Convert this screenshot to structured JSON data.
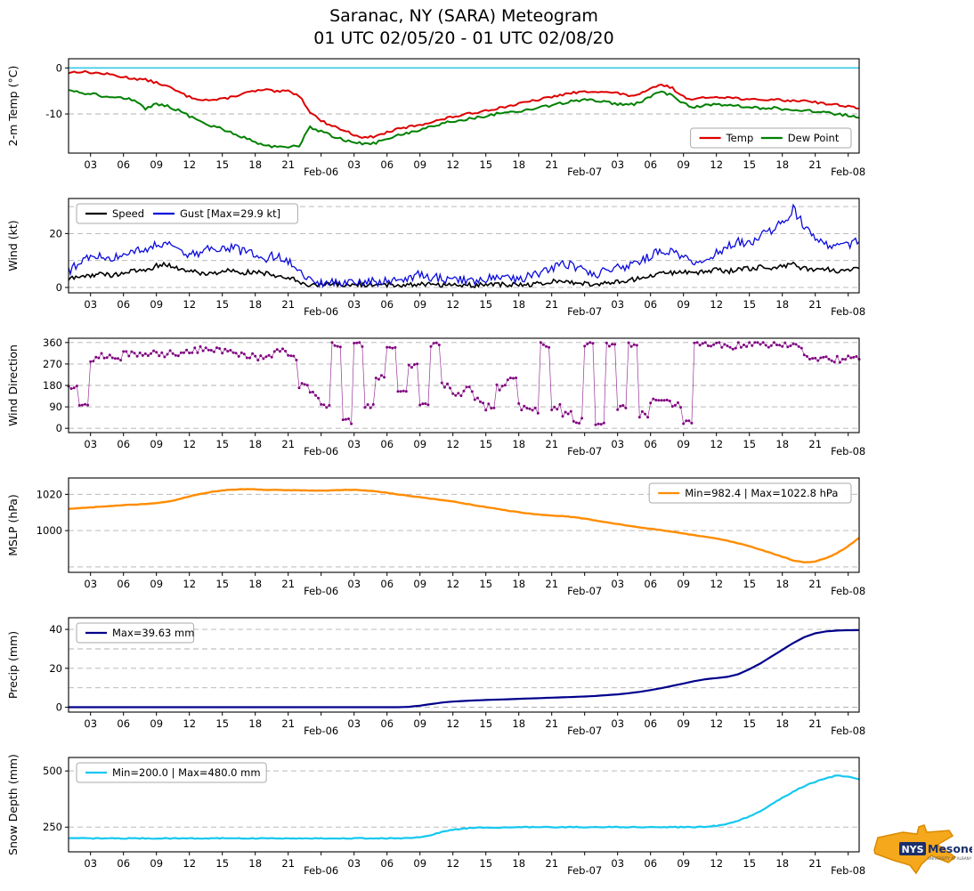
{
  "title": "Saranac, NY (SARA) Meteogram",
  "subtitle": "01 UTC 02/05/20 - 01 UTC 02/08/20",
  "logo": {
    "org": "NYS",
    "name": "Mesonet",
    "tagline": "UNIVERSITY AT ALBANY"
  },
  "chart_data": {
    "type": "line",
    "x_axis": {
      "min": 0,
      "max": 72,
      "unit": "hours since 01 UTC 02/05/20",
      "ticks": [
        {
          "x": 2,
          "label": "03"
        },
        {
          "x": 5,
          "label": "06"
        },
        {
          "x": 8,
          "label": "09"
        },
        {
          "x": 11,
          "label": "12"
        },
        {
          "x": 14,
          "label": "15"
        },
        {
          "x": 17,
          "label": "18"
        },
        {
          "x": 20,
          "label": "21"
        },
        {
          "x": 23,
          "label": "Feb-06",
          "day": true
        },
        {
          "x": 26,
          "label": "03"
        },
        {
          "x": 29,
          "label": "06"
        },
        {
          "x": 32,
          "label": "09"
        },
        {
          "x": 35,
          "label": "12"
        },
        {
          "x": 38,
          "label": "15"
        },
        {
          "x": 41,
          "label": "18"
        },
        {
          "x": 44,
          "label": "21"
        },
        {
          "x": 47,
          "label": "Feb-07",
          "day": true
        },
        {
          "x": 50,
          "label": "03"
        },
        {
          "x": 53,
          "label": "06"
        },
        {
          "x": 56,
          "label": "09"
        },
        {
          "x": 59,
          "label": "12"
        },
        {
          "x": 62,
          "label": "15"
        },
        {
          "x": 65,
          "label": "18"
        },
        {
          "x": 68,
          "label": "21"
        },
        {
          "x": 71,
          "label": "Feb-08",
          "day": true
        }
      ]
    },
    "panels": [
      {
        "name": "temperature",
        "ylabel": "2-m Temp (°C)",
        "ylim": [
          -18.5,
          2
        ],
        "yticks": [
          {
            "v": 0,
            "label": "0"
          },
          {
            "v": -10,
            "label": "-10"
          }
        ],
        "grid": [
          0,
          -10
        ],
        "hlines": [
          {
            "y": 0,
            "color": "#35c8e8"
          }
        ],
        "legend": {
          "pos": "se",
          "entries": [
            {
              "label": "Temp",
              "color": "#dd0000"
            },
            {
              "label": "Dew Point",
              "color": "#008000"
            }
          ]
        },
        "series": [
          {
            "name": "Temp",
            "color": "#dd0000",
            "width": 2,
            "jitter": 0.25,
            "steps": 4,
            "values": [
              -1.0,
              -0.8,
              -1.0,
              -1.2,
              -1.5,
              -2.0,
              -2.3,
              -2.6,
              -3.2,
              -4.0,
              -5.2,
              -6.3,
              -6.8,
              -7.0,
              -6.8,
              -6.2,
              -5.5,
              -5.0,
              -4.8,
              -5.2,
              -5.0,
              -6.0,
              -9.5,
              -11.5,
              -12.5,
              -13.5,
              -14.5,
              -15.2,
              -14.8,
              -14.0,
              -13.3,
              -12.8,
              -12.3,
              -11.8,
              -11.2,
              -10.6,
              -10.2,
              -9.7,
              -9.2,
              -8.8,
              -8.3,
              -7.8,
              -7.3,
              -6.8,
              -6.3,
              -5.8,
              -5.4,
              -5.2,
              -5.0,
              -5.3,
              -5.5,
              -6.0,
              -5.8,
              -4.6,
              -3.6,
              -4.4,
              -6.3,
              -6.8,
              -6.5,
              -6.2,
              -6.4,
              -6.6,
              -6.9,
              -7.0,
              -6.8,
              -7.0,
              -7.2,
              -7.0,
              -7.4,
              -7.8,
              -8.0,
              -8.3,
              -8.8
            ]
          },
          {
            "name": "Dew Point",
            "color": "#008000",
            "width": 2,
            "jitter": 0.3,
            "steps": 4,
            "values": [
              -5.0,
              -5.3,
              -5.6,
              -6.0,
              -6.3,
              -6.6,
              -7.0,
              -8.8,
              -7.8,
              -8.3,
              -9.2,
              -10.5,
              -11.5,
              -12.5,
              -13.2,
              -14.3,
              -15.2,
              -16.2,
              -16.8,
              -17.2,
              -17.2,
              -17.0,
              -12.8,
              -13.8,
              -14.8,
              -15.6,
              -16.2,
              -16.6,
              -16.2,
              -15.4,
              -14.6,
              -14.0,
              -13.4,
              -12.8,
              -12.2,
              -11.6,
              -11.2,
              -10.8,
              -10.4,
              -10.0,
              -9.8,
              -9.4,
              -9.0,
              -8.6,
              -8.2,
              -7.6,
              -7.2,
              -7.0,
              -7.0,
              -7.4,
              -7.8,
              -8.0,
              -7.6,
              -6.2,
              -5.2,
              -6.0,
              -7.8,
              -8.4,
              -8.2,
              -7.9,
              -8.1,
              -8.3,
              -8.6,
              -8.8,
              -8.7,
              -8.9,
              -9.2,
              -9.1,
              -9.5,
              -9.8,
              -10.0,
              -10.3,
              -10.8
            ]
          }
        ]
      },
      {
        "name": "wind",
        "ylabel": "Wind (kt)",
        "ylim": [
          -2,
          33
        ],
        "yticks": [
          {
            "v": 0,
            "label": "0"
          },
          {
            "v": 20,
            "label": "20"
          }
        ],
        "grid": [
          0,
          10,
          20,
          30
        ],
        "legend": {
          "pos": "nw",
          "entries": [
            {
              "label": "Speed",
              "color": "#000000"
            },
            {
              "label": "Gust [Max=29.9 kt]",
              "color": "#0b0bdd"
            }
          ]
        },
        "series": [
          {
            "name": "Speed",
            "color": "#000000",
            "width": 1.6,
            "jitter": 0.9,
            "steps": 6,
            "clamp": [
              0,
              33
            ],
            "values": [
              3,
              4,
              4.5,
              5,
              4.5,
              5.5,
              6,
              6.5,
              8,
              8.5,
              7,
              6,
              5.5,
              5,
              6,
              6.5,
              5.5,
              6,
              5,
              4.5,
              4,
              2,
              1,
              0.8,
              1,
              0.8,
              1,
              1.2,
              0.8,
              1,
              0.8,
              1,
              1.5,
              1.2,
              1,
              0.8,
              1,
              0.8,
              1,
              1.2,
              1,
              0.8,
              1,
              1.5,
              2,
              2.5,
              2,
              1.5,
              1,
              1.5,
              2,
              2.5,
              3.5,
              4.5,
              5,
              5.5,
              6,
              5.5,
              6,
              6.5,
              6,
              6.5,
              7,
              7.5,
              7,
              8,
              8.5,
              7,
              6.5,
              7,
              6,
              6.5,
              7
            ]
          },
          {
            "name": "Gust",
            "color": "#0b0bdd",
            "width": 1.3,
            "jitter": 1.7,
            "steps": 6,
            "clamp": [
              0,
              32.5
            ],
            "values": [
              6,
              9,
              11,
              12,
              11,
              13,
              14,
              13,
              16,
              17,
              13,
              12,
              13,
              15,
              14,
              15,
              13,
              12,
              11,
              12,
              10,
              6,
              3,
              1.5,
              2,
              1.5,
              2,
              2.5,
              2,
              3,
              2.5,
              3,
              5,
              4,
              3,
              2.5,
              3,
              2.5,
              3,
              4,
              3.5,
              3,
              4,
              5,
              7,
              9,
              8,
              6,
              5,
              6,
              7,
              8,
              9,
              12,
              14,
              13,
              12,
              10,
              11,
              13,
              15,
              17,
              16,
              19,
              21,
              24,
              29,
              23,
              18,
              16,
              15,
              16,
              17
            ]
          }
        ]
      },
      {
        "name": "wind-direction",
        "ylabel": "Wind Direction",
        "ylim": [
          -18,
          378
        ],
        "yticks": [
          {
            "v": 0,
            "label": "0"
          },
          {
            "v": 90,
            "label": "90"
          },
          {
            "v": 180,
            "label": "180"
          },
          {
            "v": 270,
            "label": "270"
          },
          {
            "v": 360,
            "label": "360"
          }
        ],
        "grid": [
          0,
          90,
          180,
          270,
          360
        ],
        "series": [
          {
            "name": "Direction",
            "color": "#800080",
            "width": 0.7,
            "opacity": 0.8,
            "jitter": 14,
            "steps": 4,
            "interp": "hold",
            "clamp": [
              0,
              360
            ],
            "marker": true,
            "values": [
              180,
              95,
              290,
              305,
              300,
              310,
              305,
              315,
              310,
              320,
              315,
              330,
              335,
              330,
              320,
              310,
              305,
              300,
              310,
              330,
              300,
              180,
              140,
              100,
              350,
              30,
              355,
              100,
              210,
              350,
              150,
              260,
              90,
              350,
              180,
              140,
              160,
              120,
              90,
              170,
              200,
              90,
              75,
              350,
              90,
              60,
              30,
              350,
              20,
              355,
              90,
              350,
              60,
              120,
              110,
              100,
              20,
              350,
              355,
              350,
              345,
              350,
              355,
              350,
              350,
              355,
              350,
              300,
              295,
              290,
              290,
              295,
              290
            ]
          }
        ]
      },
      {
        "name": "mslp",
        "ylabel": "MSLP (hPa)",
        "ylim": [
          977,
          1029
        ],
        "yticks": [
          {
            "v": 1000,
            "label": "1000"
          },
          {
            "v": 1020,
            "label": "1020"
          }
        ],
        "grid": [
          980,
          1000,
          1020
        ],
        "legend": {
          "pos": "ne",
          "entries": [
            {
              "label": "Min=982.4 | Max=1022.8 hPa",
              "color": "#ff8c00"
            }
          ]
        },
        "series": [
          {
            "name": "MSLP",
            "color": "#ff8c00",
            "width": 2.4,
            "jitter": 0.12,
            "steps": 4,
            "values": [
              1012.0,
              1012.4,
              1012.8,
              1013.2,
              1013.6,
              1014.0,
              1014.3,
              1014.6,
              1015.2,
              1016.0,
              1017.2,
              1018.8,
              1020.2,
              1021.3,
              1022.1,
              1022.6,
              1022.8,
              1022.7,
              1022.5,
              1022.4,
              1022.3,
              1022.2,
              1022.1,
              1022.0,
              1022.2,
              1022.4,
              1022.5,
              1022.2,
              1021.6,
              1020.8,
              1020.0,
              1019.2,
              1018.4,
              1017.6,
              1016.8,
              1016.0,
              1015.0,
              1014.0,
              1013.0,
              1012.0,
              1011.0,
              1010.2,
              1009.4,
              1008.8,
              1008.3,
              1008.0,
              1007.4,
              1006.6,
              1005.6,
              1004.6,
              1003.6,
              1002.6,
              1001.8,
              1001.0,
              1000.2,
              999.4,
              998.4,
              997.4,
              996.6,
              995.6,
              994.4,
              993.0,
              991.4,
              989.6,
              987.6,
              985.6,
              983.6,
              982.4,
              983.0,
              984.8,
              987.6,
              991.4,
              996.0
            ]
          }
        ]
      },
      {
        "name": "precip",
        "ylabel": "Precip (mm)",
        "ylim": [
          -2.5,
          46
        ],
        "yticks": [
          {
            "v": 0,
            "label": "0"
          },
          {
            "v": 20,
            "label": "20"
          },
          {
            "v": 40,
            "label": "40"
          }
        ],
        "grid": [
          0,
          10,
          20,
          30,
          40
        ],
        "legend": {
          "pos": "nw",
          "entries": [
            {
              "label": "Max=39.63 mm",
              "color": "#00008b"
            }
          ]
        },
        "series": [
          {
            "name": "Precip",
            "color": "#00008b",
            "width": 2.2,
            "jitter": 0,
            "steps": 2,
            "values": [
              0,
              0,
              0,
              0,
              0,
              0,
              0,
              0,
              0,
              0,
              0,
              0,
              0,
              0,
              0,
              0,
              0,
              0,
              0,
              0,
              0,
              0,
              0,
              0,
              0,
              0,
              0,
              0,
              0,
              0,
              0,
              0.2,
              0.8,
              1.6,
              2.4,
              2.9,
              3.2,
              3.5,
              3.7,
              3.9,
              4.1,
              4.3,
              4.5,
              4.7,
              4.9,
              5.1,
              5.3,
              5.5,
              5.8,
              6.2,
              6.6,
              7.2,
              7.9,
              8.8,
              9.8,
              11.0,
              12.2,
              13.4,
              14.4,
              15.0,
              15.6,
              17.0,
              19.5,
              22.5,
              26.0,
              29.5,
              33.0,
              36.0,
              38.0,
              39.0,
              39.4,
              39.6,
              39.63
            ]
          }
        ]
      },
      {
        "name": "snow-depth",
        "ylabel": "Snow Depth (mm)",
        "ylim": [
          140,
          560
        ],
        "yticks": [
          {
            "v": 250,
            "label": "250"
          },
          {
            "v": 500,
            "label": "500"
          }
        ],
        "grid": [
          250,
          500
        ],
        "legend": {
          "pos": "nw",
          "entries": [
            {
              "label": "Min=200.0 | Max=480.0 mm",
              "color": "#15c8f0"
            }
          ]
        },
        "series": [
          {
            "name": "Snow Depth",
            "color": "#15c8f0",
            "width": 2.2,
            "jitter": 2,
            "steps": 4,
            "clamp": [
              150,
              555
            ],
            "values": [
              200,
              200,
              200,
              200,
              200,
              200,
              200,
              200,
              200,
              200,
              200,
              200,
              200,
              200,
              200,
              200,
              200,
              200,
              200,
              200,
              200,
              200,
              200,
              200,
              200,
              200,
              200,
              200,
              200,
              200,
              200,
              200,
              205,
              215,
              228,
              238,
              244,
              247,
              248,
              248,
              249,
              250,
              250,
              249,
              250,
              250,
              250,
              250,
              250,
              250,
              250,
              250,
              250,
              250,
              250,
              250,
              250,
              250,
              252,
              256,
              264,
              278,
              298,
              322,
              350,
              380,
              408,
              432,
              452,
              468,
              480,
              473,
              463
            ]
          }
        ]
      }
    ]
  }
}
